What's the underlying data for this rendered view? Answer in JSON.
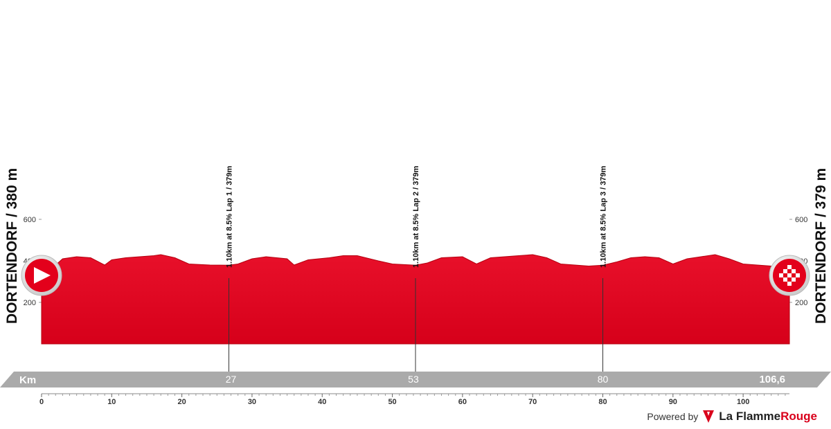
{
  "start": {
    "name": "DORTENDORF / 380 m",
    "marker": "start-arrow-icon"
  },
  "finish": {
    "name": "DORTENDORF / 379 m",
    "marker": "finish-checkered-flag-icon"
  },
  "distance_bar": {
    "unit_label": "Km",
    "labels": [
      {
        "km": 27,
        "text": "27"
      },
      {
        "km": 53,
        "text": "53"
      },
      {
        "km": 80,
        "text": "80"
      },
      {
        "km": 106.6,
        "text": "106,6"
      }
    ]
  },
  "climbs": [
    {
      "km": 26.7,
      "label": "1.10km at 8.5% Lap 1 / 379m"
    },
    {
      "km": 53.3,
      "label": "1.10km at 8.5% Lap 2 / 379m"
    },
    {
      "km": 80.0,
      "label": "1.10km at 8.5% Lap 3 / 379m"
    }
  ],
  "branding": {
    "powered_by": "Powered by",
    "brand_main": "La Flamme",
    "brand_accent": "Rouge"
  },
  "colors": {
    "profile_fill": "#e3001b",
    "profile_edge": "#b5000f",
    "bar": "#aaaaaa",
    "text": "#111111"
  },
  "chart_data": {
    "type": "area",
    "title": "",
    "xlabel": "Km",
    "ylabel": "",
    "xlim": [
      0,
      106.6
    ],
    "ylim": [
      0,
      700
    ],
    "x_ticks": [
      0,
      10,
      20,
      30,
      40,
      50,
      60,
      70,
      80,
      90,
      100
    ],
    "y_ticks": [
      200,
      400,
      600
    ],
    "series": [
      {
        "x": [
          0,
          1.5,
          3,
          5,
          7,
          9,
          10,
          12,
          14,
          16,
          17,
          19,
          21,
          24,
          26.7,
          28,
          30,
          32,
          35,
          36,
          38,
          41,
          43,
          45,
          48,
          50,
          53.3,
          55,
          57,
          60,
          62,
          64,
          66,
          68,
          70,
          72,
          74,
          76,
          78,
          80,
          82,
          84,
          86,
          88,
          90,
          92,
          94,
          96,
          98,
          100,
          102,
          104,
          105.5,
          106.6
        ],
        "y": [
          380,
          365,
          410,
          420,
          415,
          380,
          405,
          415,
          420,
          425,
          430,
          415,
          385,
          380,
          379,
          385,
          410,
          420,
          410,
          380,
          405,
          415,
          425,
          425,
          400,
          385,
          379,
          390,
          415,
          420,
          385,
          415,
          420,
          425,
          430,
          415,
          385,
          380,
          375,
          379,
          395,
          415,
          420,
          415,
          385,
          410,
          420,
          430,
          410,
          385,
          380,
          375,
          360,
          379
        ]
      }
    ]
  }
}
